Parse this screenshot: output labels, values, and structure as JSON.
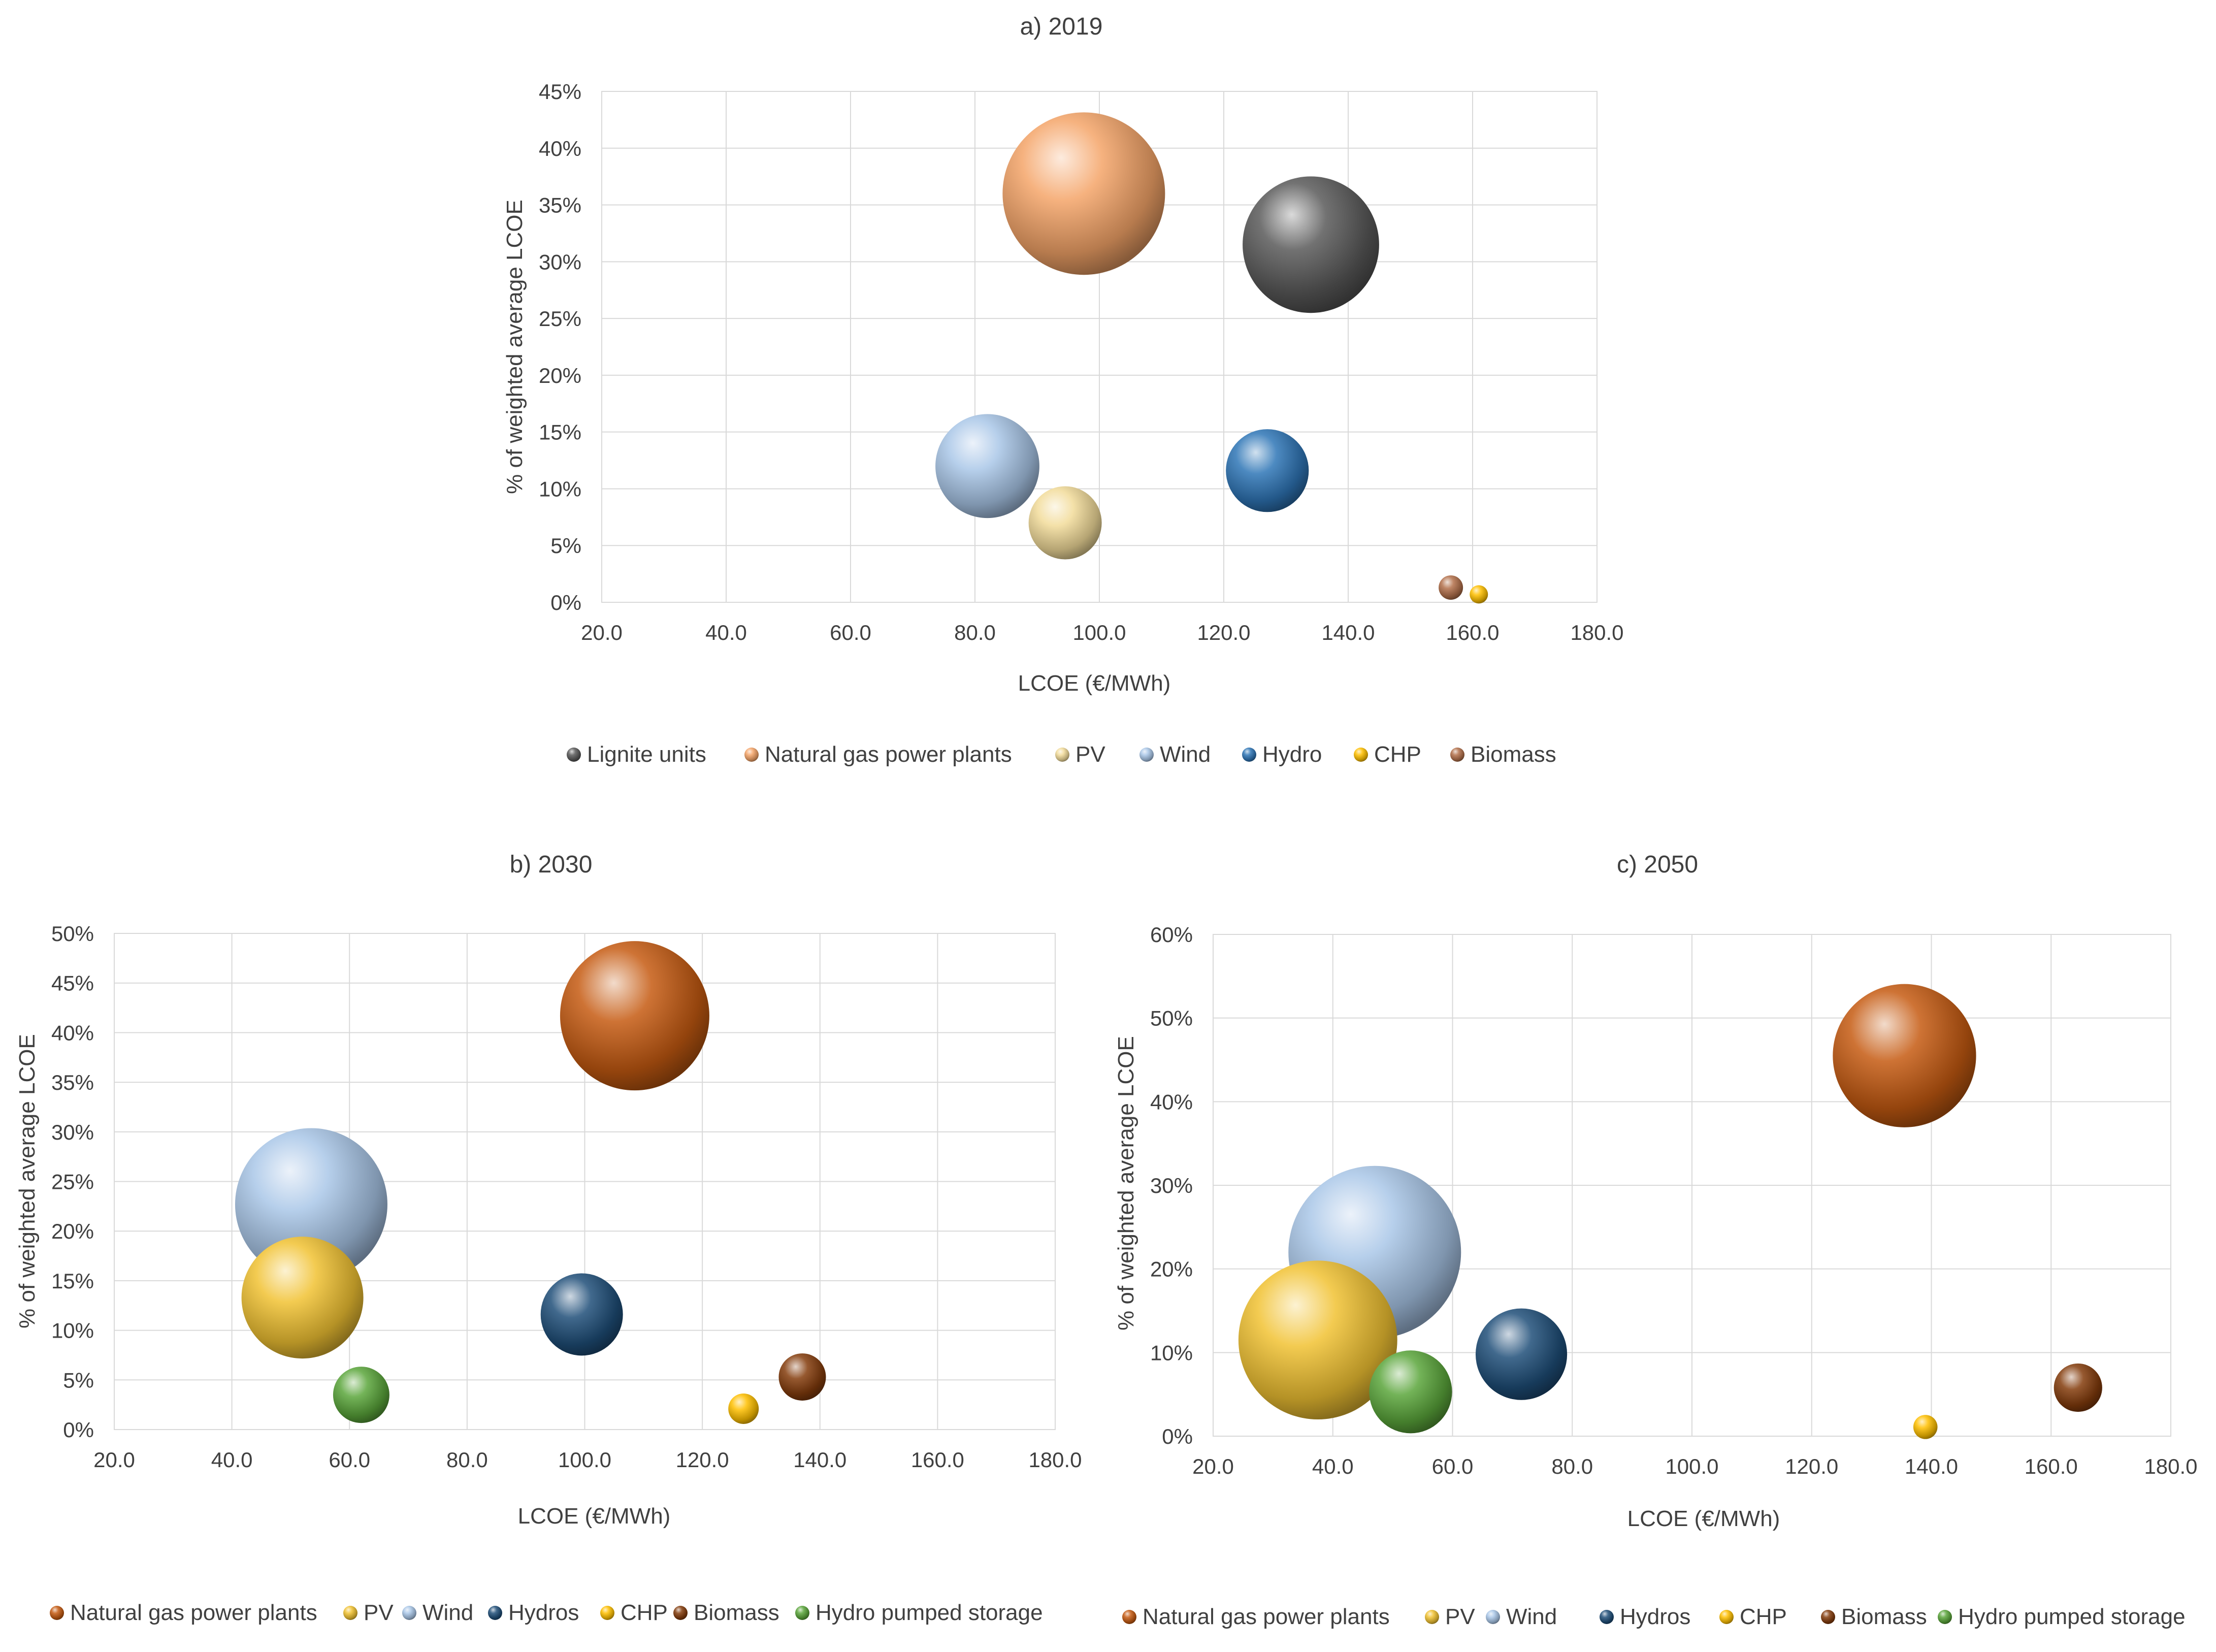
{
  "colors": {
    "lignite": "#595959",
    "gas_2019": "#f4a468",
    "gas": "#c55a11",
    "pv_2019": "#f2dc9a",
    "pv": "#f1c232",
    "wind": "#a9c6e8",
    "hydro_2019": "#2e75b6",
    "hydro": "#1f4e79",
    "chp": "#ffc000",
    "biomass_2019": "#b2704a",
    "biomass": "#843c0c",
    "pumped": "#5aa63a"
  },
  "chart_data": [
    {
      "id": "a",
      "type": "bubble",
      "title": "a) 2019",
      "xlabel": "LCOE (€/MWh)",
      "ylabel": "% of weighted average LCOE",
      "xlim": [
        20,
        180
      ],
      "x_ticks": [
        "20.0",
        "40.0",
        "60.0",
        "80.0",
        "100.0",
        "120.0",
        "140.0",
        "160.0",
        "180.0"
      ],
      "ylim": [
        0,
        45
      ],
      "y_ticks": [
        "0%",
        "5%",
        "10%",
        "15%",
        "20%",
        "25%",
        "30%",
        "35%",
        "40%",
        "45%"
      ],
      "series": [
        {
          "name": "Lignite units",
          "x": 134,
          "y": 31.5,
          "size": 0.84,
          "color_key": "lignite"
        },
        {
          "name": "Natural gas power plants",
          "x": 97.5,
          "y": 36,
          "size": 1.0,
          "color_key": "gas_2019"
        },
        {
          "name": "PV",
          "x": 94.5,
          "y": 7,
          "size": 0.45,
          "color_key": "pv_2019"
        },
        {
          "name": "Wind",
          "x": 82,
          "y": 12,
          "size": 0.64,
          "color_key": "wind"
        },
        {
          "name": "Hydro",
          "x": 127,
          "y": 11.6,
          "size": 0.51,
          "color_key": "hydro_2019"
        },
        {
          "name": "CHP",
          "x": 161,
          "y": 0.7,
          "size": 0.1,
          "color_key": "chp"
        },
        {
          "name": "Biomass",
          "x": 156.5,
          "y": 1.3,
          "size": 0.15,
          "color_key": "biomass_2019"
        }
      ]
    },
    {
      "id": "b",
      "type": "bubble",
      "title": "b) 2030",
      "xlabel": "LCOE  (€/MWh)",
      "ylabel": "% of weighted average LCOE",
      "xlim": [
        20,
        180
      ],
      "x_ticks": [
        "20.0",
        "40.0",
        "60.0",
        "80.0",
        "100.0",
        "120.0",
        "140.0",
        "160.0",
        "180.0"
      ],
      "ylim": [
        0,
        50
      ],
      "y_ticks": [
        "0%",
        "5%",
        "10%",
        "15%",
        "20%",
        "25%",
        "30%",
        "35%",
        "40%",
        "45%",
        "50%"
      ],
      "series": [
        {
          "name": "Natural gas power plants",
          "x": 108.5,
          "y": 41.7,
          "size": 0.98,
          "color_key": "gas"
        },
        {
          "name": "PV",
          "x": 52,
          "y": 13.3,
          "size": 0.8,
          "color_key": "pv"
        },
        {
          "name": "Wind",
          "x": 53.5,
          "y": 22.7,
          "size": 1.0,
          "color_key": "wind"
        },
        {
          "name": "Hydros",
          "x": 99.5,
          "y": 11.6,
          "size": 0.54,
          "color_key": "hydro"
        },
        {
          "name": "CHP",
          "x": 127,
          "y": 2.1,
          "size": 0.2,
          "color_key": "chp"
        },
        {
          "name": "Biomass",
          "x": 137,
          "y": 5.3,
          "size": 0.31,
          "color_key": "biomass"
        },
        {
          "name": "Hydro pumped storage",
          "x": 62,
          "y": 3.5,
          "size": 0.37,
          "color_key": "pumped"
        }
      ]
    },
    {
      "id": "c",
      "type": "bubble",
      "title": "c) 2050",
      "xlabel": "LCOE  (€/MWh)",
      "ylabel": "% of weighted average LCOE",
      "xlim": [
        20,
        180
      ],
      "x_ticks": [
        "20.0",
        "40.0",
        "60.0",
        "80.0",
        "100.0",
        "120.0",
        "140.0",
        "160.0",
        "180.0"
      ],
      "ylim": [
        0,
        60
      ],
      "y_ticks": [
        "0%",
        "10%",
        "20%",
        "30%",
        "40%",
        "50%",
        "60%"
      ],
      "series": [
        {
          "name": "Natural gas power plants",
          "x": 135.5,
          "y": 45.5,
          "size": 0.83,
          "color_key": "gas"
        },
        {
          "name": "PV",
          "x": 37.5,
          "y": 11.5,
          "size": 0.92,
          "color_key": "pv"
        },
        {
          "name": "Wind",
          "x": 47,
          "y": 22,
          "size": 1.0,
          "color_key": "wind"
        },
        {
          "name": "Hydros",
          "x": 71.5,
          "y": 9.8,
          "size": 0.53,
          "color_key": "hydro"
        },
        {
          "name": "CHP",
          "x": 139,
          "y": 1.1,
          "size": 0.14,
          "color_key": "chp"
        },
        {
          "name": "Biomass",
          "x": 164.5,
          "y": 5.8,
          "size": 0.28,
          "color_key": "biomass"
        },
        {
          "name": "Hydro pumped storage",
          "x": 53,
          "y": 5.3,
          "size": 0.48,
          "color_key": "pumped"
        }
      ]
    }
  ]
}
